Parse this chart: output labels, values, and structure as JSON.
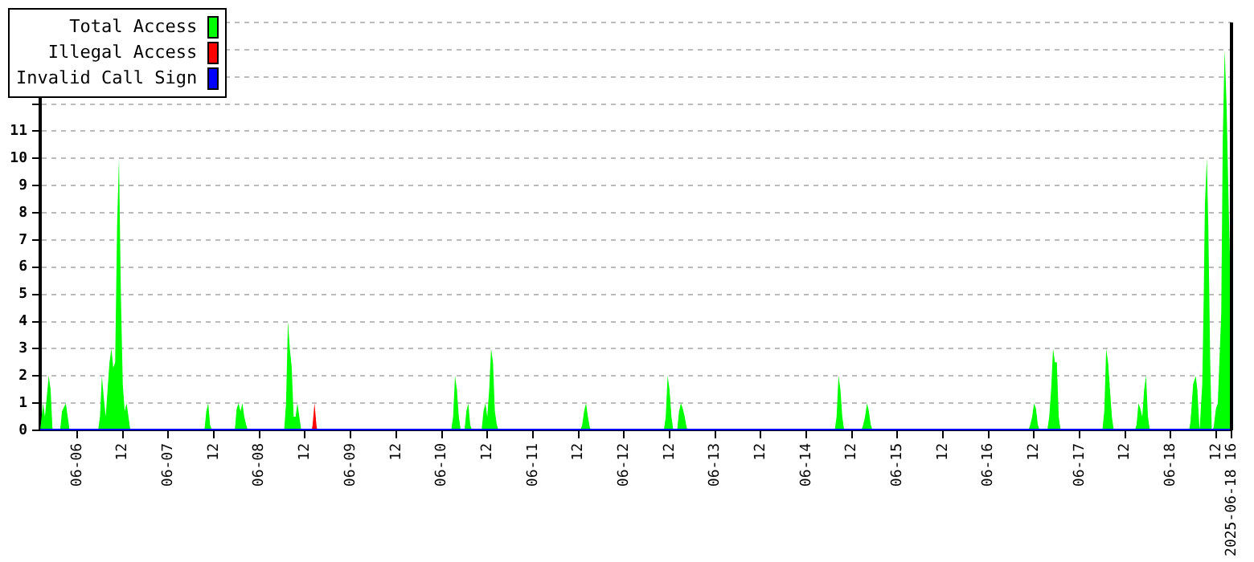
{
  "chart_data": {
    "type": "area",
    "grid": "y",
    "legend": "top left",
    "xlim": [
      "2025-06-05T14:15",
      "2025-06-18T16:00"
    ],
    "xticks": [
      {
        "value": "2025-06-06",
        "label": "06-06"
      },
      {
        "value": "2025-06-06T12:00",
        "label": "12"
      },
      {
        "value": "2025-06-07",
        "label": "06-07"
      },
      {
        "value": "2025-06-07T12:00",
        "label": "12"
      },
      {
        "value": "2025-06-08",
        "label": "06-08"
      },
      {
        "value": "2025-06-08T12:00",
        "label": "12"
      },
      {
        "value": "2025-06-09",
        "label": "06-09"
      },
      {
        "value": "2025-06-09T12:00",
        "label": "12"
      },
      {
        "value": "2025-06-10",
        "label": "06-10"
      },
      {
        "value": "2025-06-10T12:00",
        "label": "12"
      },
      {
        "value": "2025-06-11",
        "label": "06-11"
      },
      {
        "value": "2025-06-11T12:00",
        "label": "12"
      },
      {
        "value": "2025-06-12",
        "label": "06-12"
      },
      {
        "value": "2025-06-12T12:00",
        "label": "12"
      },
      {
        "value": "2025-06-13",
        "label": "06-13"
      },
      {
        "value": "2025-06-13T12:00",
        "label": "12"
      },
      {
        "value": "2025-06-14",
        "label": "06-14"
      },
      {
        "value": "2025-06-14T12:00",
        "label": "12"
      },
      {
        "value": "2025-06-15",
        "label": "06-15"
      },
      {
        "value": "2025-06-15T12:00",
        "label": "12"
      },
      {
        "value": "2025-06-16",
        "label": "06-16"
      },
      {
        "value": "2025-06-16T12:00",
        "label": "12"
      },
      {
        "value": "2025-06-17",
        "label": "06-17"
      },
      {
        "value": "2025-06-17T12:00",
        "label": "12"
      },
      {
        "value": "2025-06-18",
        "label": "06-18"
      },
      {
        "value": "2025-06-18T12:00",
        "label": "12"
      },
      {
        "value": "2025-06-18T16:00",
        "label": "2025-06-18 16"
      }
    ],
    "ylim": [
      0,
      15
    ],
    "yticks": [
      0,
      1,
      2,
      3,
      4,
      5,
      6,
      7,
      8,
      9,
      10,
      11,
      {
        "value": 12,
        "label": null
      },
      {
        "value": 13,
        "label": null
      },
      {
        "value": 14,
        "label": null
      },
      {
        "value": 15,
        "label": null
      }
    ],
    "series": [
      {
        "name": "Total Access",
        "color": "#00ff00",
        "x": [
          "2025-06-05T14:15",
          "2025-06-05T15:00",
          "2025-06-05T15:30",
          "2025-06-05T16:30",
          "2025-06-05T17:00",
          "2025-06-05T17:30",
          "2025-06-05T19:30",
          "2025-06-05T20:00",
          "2025-06-05T21:00",
          "2025-06-05T21:30",
          "2025-06-05T22:00",
          "2025-06-06T05:30",
          "2025-06-06T06:00",
          "2025-06-06T06:30",
          "2025-06-06T07:00",
          "2025-06-06T07:30",
          "2025-06-06T08:00",
          "2025-06-06T08:30",
          "2025-06-06T09:00",
          "2025-06-06T09:30",
          "2025-06-06T10:00",
          "2025-06-06T10:30",
          "2025-06-06T11:00",
          "2025-06-06T11:30",
          "2025-06-06T12:00",
          "2025-06-06T12:30",
          "2025-06-06T13:00",
          "2025-06-06T13:30",
          "2025-06-06T14:00",
          "2025-06-07T09:30",
          "2025-06-07T10:00",
          "2025-06-07T10:30",
          "2025-06-07T11:00",
          "2025-06-07T11:30",
          "2025-06-07T17:30",
          "2025-06-07T18:00",
          "2025-06-07T18:30",
          "2025-06-07T19:00",
          "2025-06-07T19:30",
          "2025-06-07T20:00",
          "2025-06-07T20:30",
          "2025-06-07T21:00",
          "2025-06-08T06:30",
          "2025-06-08T07:00",
          "2025-06-08T07:30",
          "2025-06-08T08:00",
          "2025-06-08T08:30",
          "2025-06-08T09:00",
          "2025-06-08T09:30",
          "2025-06-08T10:00",
          "2025-06-08T10:30",
          "2025-06-08T11:00",
          "2025-06-10T02:30",
          "2025-06-10T03:00",
          "2025-06-10T03:30",
          "2025-06-10T04:00",
          "2025-06-10T04:30",
          "2025-06-10T05:00",
          "2025-06-10T06:00",
          "2025-06-10T06:30",
          "2025-06-10T07:00",
          "2025-06-10T07:30",
          "2025-06-10T08:00",
          "2025-06-10T10:30",
          "2025-06-10T11:00",
          "2025-06-10T11:30",
          "2025-06-10T12:00",
          "2025-06-10T12:30",
          "2025-06-10T13:00",
          "2025-06-10T13:30",
          "2025-06-10T14:00",
          "2025-06-10T14:30",
          "2025-06-10T15:00",
          "2025-06-11T12:30",
          "2025-06-11T13:00",
          "2025-06-11T13:30",
          "2025-06-11T14:00",
          "2025-06-11T14:30",
          "2025-06-11T15:00",
          "2025-06-11T15:30",
          "2025-06-12T10:30",
          "2025-06-12T11:00",
          "2025-06-12T11:30",
          "2025-06-12T12:00",
          "2025-06-12T12:30",
          "2025-06-12T13:00",
          "2025-06-12T14:00",
          "2025-06-12T14:30",
          "2025-06-12T15:00",
          "2025-06-12T15:30",
          "2025-06-12T16:00",
          "2025-06-12T16:30",
          "2025-06-12T17:00",
          "2025-06-14T07:30",
          "2025-06-14T08:00",
          "2025-06-14T08:30",
          "2025-06-14T09:00",
          "2025-06-14T09:30",
          "2025-06-14T10:00",
          "2025-06-14T14:30",
          "2025-06-14T15:00",
          "2025-06-14T15:30",
          "2025-06-14T16:00",
          "2025-06-14T16:30",
          "2025-06-14T17:00",
          "2025-06-14T17:30",
          "2025-06-16T10:30",
          "2025-06-16T11:00",
          "2025-06-16T11:30",
          "2025-06-16T12:00",
          "2025-06-16T12:30",
          "2025-06-16T13:00",
          "2025-06-16T13:30",
          "2025-06-16T15:30",
          "2025-06-16T16:00",
          "2025-06-16T16:30",
          "2025-06-16T17:00",
          "2025-06-16T17:30",
          "2025-06-16T18:00",
          "2025-06-16T18:30",
          "2025-06-16T19:00",
          "2025-06-17T06:00",
          "2025-06-17T06:30",
          "2025-06-17T07:00",
          "2025-06-17T07:30",
          "2025-06-17T08:00",
          "2025-06-17T08:30",
          "2025-06-17T09:00",
          "2025-06-17T14:30",
          "2025-06-17T15:00",
          "2025-06-17T15:30",
          "2025-06-17T16:00",
          "2025-06-17T16:30",
          "2025-06-17T17:00",
          "2025-06-17T17:30",
          "2025-06-17T18:00",
          "2025-06-17T18:30",
          "2025-06-18T04:48",
          "2025-06-18T05:12",
          "2025-06-18T05:54",
          "2025-06-18T06:36",
          "2025-06-18T07:00",
          "2025-06-18T07:36",
          "2025-06-18T08:18",
          "2025-06-18T08:42",
          "2025-06-18T09:00",
          "2025-06-18T09:30",
          "2025-06-18T09:54",
          "2025-06-18T10:24",
          "2025-06-18T10:48",
          "2025-06-18T11:18",
          "2025-06-18T11:54",
          "2025-06-18T12:24",
          "2025-06-18T13:18",
          "2025-06-18T13:42",
          "2025-06-18T14:12",
          "2025-06-18T14:42",
          "2025-06-18T15:18",
          "2025-06-18T16:00"
        ],
        "values": [
          0,
          1,
          0.5,
          2,
          1.5,
          0,
          0,
          0.7,
          1,
          0.5,
          0,
          0,
          0.5,
          2,
          1.2,
          0.5,
          1.5,
          2.5,
          3,
          2.3,
          2.5,
          7.5,
          10,
          5,
          1.7,
          0.7,
          1,
          0.5,
          0,
          0,
          0.7,
          1,
          0.2,
          0,
          0,
          0.8,
          1,
          0.7,
          1,
          0.5,
          0.2,
          0,
          0,
          1,
          4,
          3,
          2.3,
          0.5,
          0.5,
          1,
          0.5,
          0,
          0,
          0.5,
          2,
          1.5,
          0.5,
          0,
          0,
          0.7,
          1,
          0.2,
          0,
          0,
          0.7,
          1,
          0.5,
          1.5,
          3,
          2.5,
          0.7,
          0.2,
          0,
          0,
          0.2,
          0.7,
          1,
          0.5,
          0.1,
          0,
          0,
          0.5,
          2,
          1.5,
          0.5,
          0,
          0,
          0.7,
          1,
          0.8,
          0.5,
          0.1,
          0,
          0,
          0.5,
          2,
          1.5,
          0.5,
          0,
          0,
          0.2,
          0.5,
          1,
          0.7,
          0.2,
          0,
          0,
          0.2,
          0.5,
          1,
          0.8,
          0.2,
          0,
          0,
          0.5,
          1.5,
          3,
          2.5,
          2.5,
          0.5,
          0,
          0,
          0.7,
          3,
          2.5,
          1.5,
          0.5,
          0,
          0,
          0.2,
          1,
          0.8,
          0.5,
          1.5,
          2,
          0.5,
          0,
          0,
          0.3,
          1.7,
          2,
          1.5,
          0,
          1.7,
          5,
          8.3,
          10,
          7.5,
          2.5,
          0,
          0.1,
          0.8,
          1,
          4.3,
          10.7,
          14,
          12,
          8,
          4
        ]
      },
      {
        "name": "Illegal Access",
        "color": "#ff0000",
        "type": "area",
        "x": [
          "2025-06-08T13:45",
          "2025-06-08T14:00",
          "2025-06-08T14:30",
          "2025-06-08T15:00",
          "2025-06-08T15:15"
        ],
        "values": [
          0,
          0.2,
          1,
          0.2,
          0
        ]
      },
      {
        "name": "Invalid Call Sign",
        "color": "#0000ff",
        "type": "line",
        "x": [
          "2025-06-05T14:15",
          "2025-06-18T16:00"
        ],
        "values": [
          0,
          0
        ]
      }
    ]
  }
}
